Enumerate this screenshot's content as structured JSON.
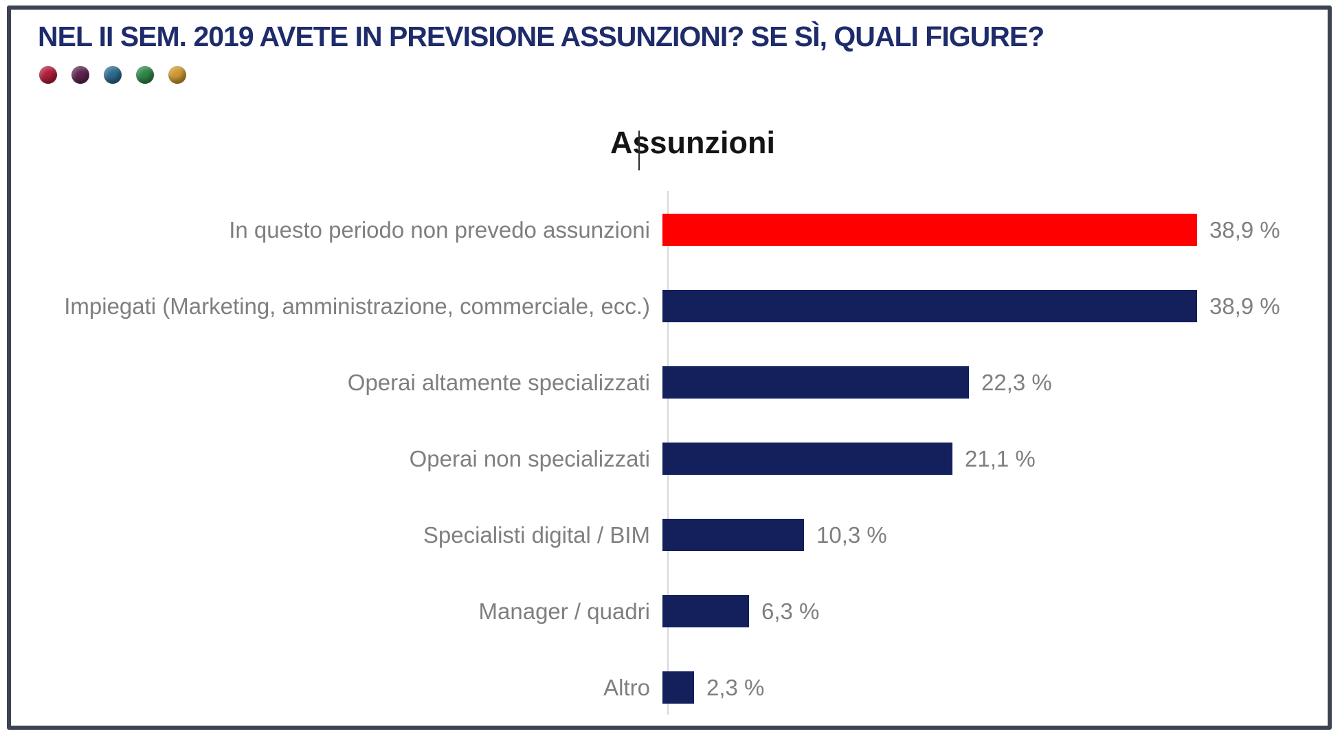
{
  "header": {
    "title": "NEL II SEM. 2019 AVETE IN PREVISIONE ASSUNZIONI? SE SÌ, QUALI FIGURE?",
    "title_color": "#1e2c6b",
    "bullet_colors": [
      "#b01e3c",
      "#5e2550",
      "#2d6a8e",
      "#2e8748",
      "#cd9832"
    ]
  },
  "chart_data": {
    "type": "bar",
    "orientation": "horizontal",
    "title": "Assunzioni",
    "categories": [
      "In questo periodo non prevedo assunzioni",
      "Impiegati (Marketing, amministrazione, commerciale, ecc.)",
      "Operai altamente specializzati",
      "Operai non specializzati",
      "Specialisti digital / BIM",
      "Manager / quadri",
      "Altro"
    ],
    "values": [
      38.9,
      38.9,
      22.3,
      21.1,
      10.3,
      6.3,
      2.3
    ],
    "value_labels": [
      "38,9 %",
      "38,9 %",
      "22,3 %",
      "21,1 %",
      "10,3 %",
      "6,3 %",
      "2,3 %"
    ],
    "bar_colors": [
      "#ff0000",
      "#13205c",
      "#13205c",
      "#13205c",
      "#13205c",
      "#13205c",
      "#13205c"
    ],
    "xlim": [
      0,
      40
    ],
    "xlabel": "",
    "ylabel": "",
    "legend": "none",
    "gridlines": false,
    "label_color": "#7f7f7f",
    "axis_line_color": "#d8d8d8",
    "highlight_color": "#ff0000",
    "default_bar_color": "#13205c"
  }
}
